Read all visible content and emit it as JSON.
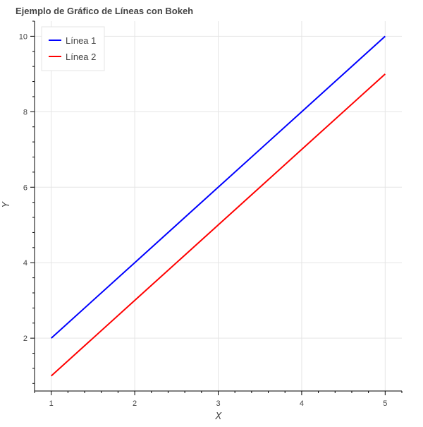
{
  "chart_data": {
    "type": "line",
    "title": "Ejemplo de Gráfico de Líneas con Bokeh",
    "xlabel": "X",
    "ylabel": "Y",
    "x": [
      1,
      2,
      3,
      4,
      5
    ],
    "series": [
      {
        "name": "Línea 1",
        "values": [
          2,
          4,
          6,
          8,
          10
        ],
        "color": "#0000ff"
      },
      {
        "name": "Línea 2",
        "values": [
          1,
          3,
          5,
          7,
          9
        ],
        "color": "#ff0000"
      }
    ],
    "xlim": [
      0.8,
      5.2
    ],
    "ylim": [
      0.6,
      10.4
    ],
    "x_ticks": [
      "1",
      "2",
      "3",
      "4",
      "5"
    ],
    "y_ticks": [
      "2",
      "4",
      "6",
      "8",
      "10"
    ],
    "grid": true,
    "legend_position": "top-left"
  }
}
